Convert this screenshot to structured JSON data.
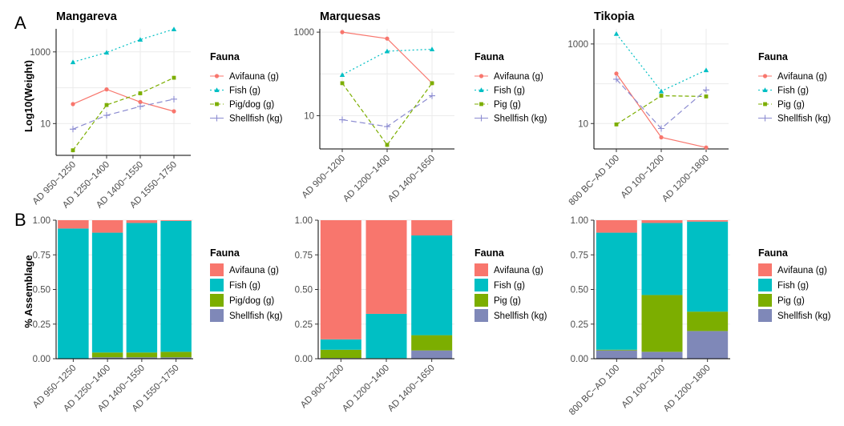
{
  "figure": {
    "panel_labels": [
      "A",
      "B"
    ],
    "legend_title": "Fauna",
    "ylabel_top": "Log10(Weight)",
    "ylabel_bottom": "% Assemblage"
  },
  "colors": {
    "Avifauna": "#f8766d",
    "Fish": "#00bfc4",
    "Pig": "#7cae00",
    "Shellfish": "#8c8cd1",
    "Shellfish_bar": "#7f88b8"
  },
  "chart_data": [
    {
      "type": "line",
      "title": "Mangareva",
      "ylabel": "Log10(Weight)",
      "scale": "log10",
      "ylim": [
        1.3,
        4400
      ],
      "yticks": [
        10,
        1000
      ],
      "ytick_labels": [
        "10",
        "1000"
      ],
      "categories": [
        "AD 950−1250",
        "AD 1250−1400",
        "AD 1400−1550",
        "AD 1550−1750"
      ],
      "series": [
        {
          "name": "Avifauna (g)",
          "values": [
            35,
            90,
            40,
            22
          ]
        },
        {
          "name": "Fish (g)",
          "values": [
            520,
            960,
            2200,
            4300
          ]
        },
        {
          "name": "Pig/dog (g)",
          "values": [
            1.8,
            33,
            70,
            190
          ]
        },
        {
          "name": "Shellfish (kg)",
          "values": [
            7,
            17,
            30,
            48
          ]
        }
      ],
      "grid": true,
      "legend": "right"
    },
    {
      "type": "line",
      "title": "Marquesas",
      "scale": "log10",
      "ylim": [
        1.6,
        1200
      ],
      "yticks": [
        10,
        1000
      ],
      "ytick_labels": [
        "10",
        "1000"
      ],
      "categories": [
        "AD 900−1200",
        "AD 1200−1400",
        "AD 1400−1650"
      ],
      "series": [
        {
          "name": "Avifauna (g)",
          "values": [
            1000,
            700,
            60
          ]
        },
        {
          "name": "Fish (g)",
          "values": [
            95,
            350,
            390
          ]
        },
        {
          "name": "Pig (g)",
          "values": [
            60,
            2,
            60
          ]
        },
        {
          "name": "Shellfish (kg)",
          "values": [
            8,
            5.5,
            30
          ]
        }
      ],
      "grid": true,
      "legend": "right"
    },
    {
      "type": "line",
      "title": "Tikopia",
      "scale": "log10",
      "ylim": [
        2.3,
        2400
      ],
      "yticks": [
        10,
        1000
      ],
      "ytick_labels": [
        "10",
        "1000"
      ],
      "categories": [
        "800 BC−AD 100",
        "AD 100−1200",
        "AD 1200−1800"
      ],
      "series": [
        {
          "name": "Avifauna (g)",
          "values": [
            180,
            4.5,
            2.5
          ]
        },
        {
          "name": "Fish (g)",
          "values": [
            1800,
            65,
            220
          ]
        },
        {
          "name": "Pig (g)",
          "values": [
            9.5,
            50,
            48
          ]
        },
        {
          "name": "Shellfish (kg)",
          "values": [
            130,
            7.5,
            70
          ]
        }
      ],
      "grid": true,
      "legend": "right"
    },
    {
      "type": "bar",
      "stacked": true,
      "ylabel": "% Assemblage",
      "ylim": [
        0,
        1
      ],
      "yticks": [
        0,
        0.25,
        0.5,
        0.75,
        1
      ],
      "ytick_labels": [
        "0.00",
        "0.25",
        "0.50",
        "0.75",
        "1.00"
      ],
      "categories": [
        "AD 950−1250",
        "AD 1250−1400",
        "AD 1400−1550",
        "AD 1550−1750"
      ],
      "series": [
        {
          "name": "Shellfish (kg)",
          "values": [
            0.002,
            0.01,
            0.01,
            0.01
          ]
        },
        {
          "name": "Pig/dog (g)",
          "values": [
            0.001,
            0.035,
            0.035,
            0.04
          ]
        },
        {
          "name": "Fish (g)",
          "values": [
            0.937,
            0.865,
            0.935,
            0.945
          ]
        },
        {
          "name": "Avifauna (g)",
          "values": [
            0.06,
            0.09,
            0.02,
            0.005
          ]
        }
      ],
      "grid": true,
      "legend": "right"
    },
    {
      "type": "bar",
      "stacked": true,
      "ylim": [
        0,
        1
      ],
      "yticks": [
        0,
        0.25,
        0.5,
        0.75,
        1
      ],
      "ytick_labels": [
        "0.00",
        "0.25",
        "0.50",
        "0.75",
        "1.00"
      ],
      "categories": [
        "AD 900−1200",
        "AD 1200−1400",
        "AD 1400−1650"
      ],
      "series": [
        {
          "name": "Shellfish (kg)",
          "values": [
            0.005,
            0.002,
            0.06
          ]
        },
        {
          "name": "Pig (g)",
          "values": [
            0.06,
            0.002,
            0.11
          ]
        },
        {
          "name": "Fish (g)",
          "values": [
            0.075,
            0.32,
            0.72
          ]
        },
        {
          "name": "Avifauna (g)",
          "values": [
            0.86,
            0.676,
            0.11
          ]
        }
      ],
      "grid": true,
      "legend": "right"
    },
    {
      "type": "bar",
      "stacked": true,
      "ylim": [
        0,
        1
      ],
      "yticks": [
        0,
        0.25,
        0.5,
        0.75,
        1
      ],
      "ytick_labels": [
        "0.00",
        "0.25",
        "0.50",
        "0.75",
        "1.00"
      ],
      "categories": [
        "800 BC−AD 100",
        "AD 100−1200",
        "AD 1200−1800"
      ],
      "series": [
        {
          "name": "Shellfish (kg)",
          "values": [
            0.06,
            0.05,
            0.2
          ]
        },
        {
          "name": "Pig (g)",
          "values": [
            0.005,
            0.41,
            0.14
          ]
        },
        {
          "name": "Fish (g)",
          "values": [
            0.845,
            0.52,
            0.65
          ]
        },
        {
          "name": "Avifauna (g)",
          "values": [
            0.09,
            0.02,
            0.01
          ]
        }
      ],
      "grid": true,
      "legend": "right"
    }
  ]
}
